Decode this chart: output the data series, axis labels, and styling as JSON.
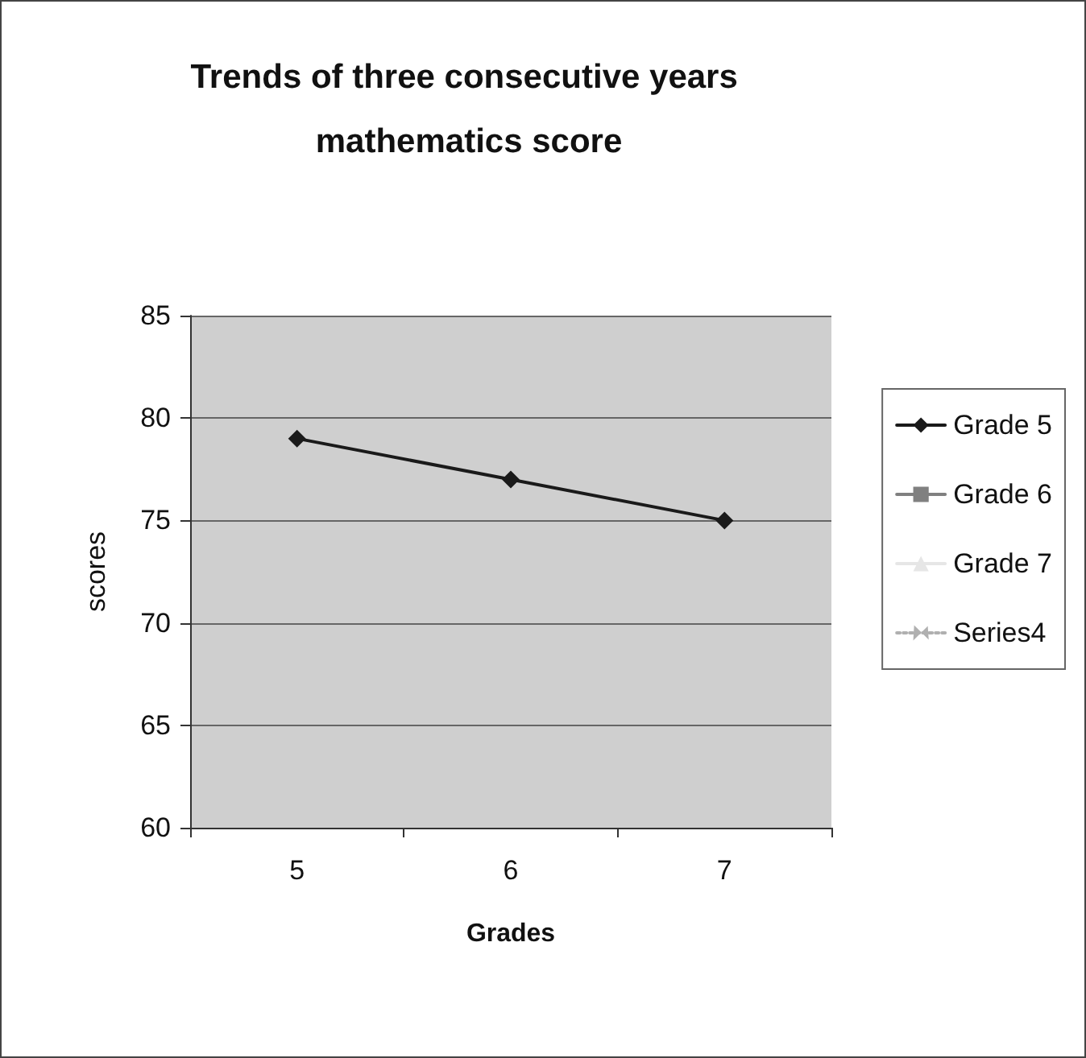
{
  "chart_data": {
    "type": "line",
    "title": "Trends of three consecutive years mathematics score",
    "xlabel": "Grades",
    "ylabel": "scores",
    "categories": [
      "5",
      "6",
      "7"
    ],
    "series": [
      {
        "name": "Grade 5",
        "color": "#1a1a1a",
        "marker": "diamond",
        "values": [
          79,
          77,
          75
        ]
      },
      {
        "name": "Grade 6",
        "color": "#808080",
        "marker": "square",
        "values": [
          null,
          null,
          null
        ]
      },
      {
        "name": "Grade 7",
        "color": "#e6e6e6",
        "marker": "triangle",
        "values": [
          null,
          null,
          null
        ]
      },
      {
        "name": "Series4",
        "color": "#b0b0b0",
        "marker": "cross",
        "line_style": "dotted",
        "values": [
          null,
          null,
          null
        ]
      }
    ],
    "ylim": [
      60,
      85
    ],
    "yticks": [
      60,
      65,
      70,
      75,
      80,
      85
    ],
    "grid": "y",
    "legend": "right"
  }
}
